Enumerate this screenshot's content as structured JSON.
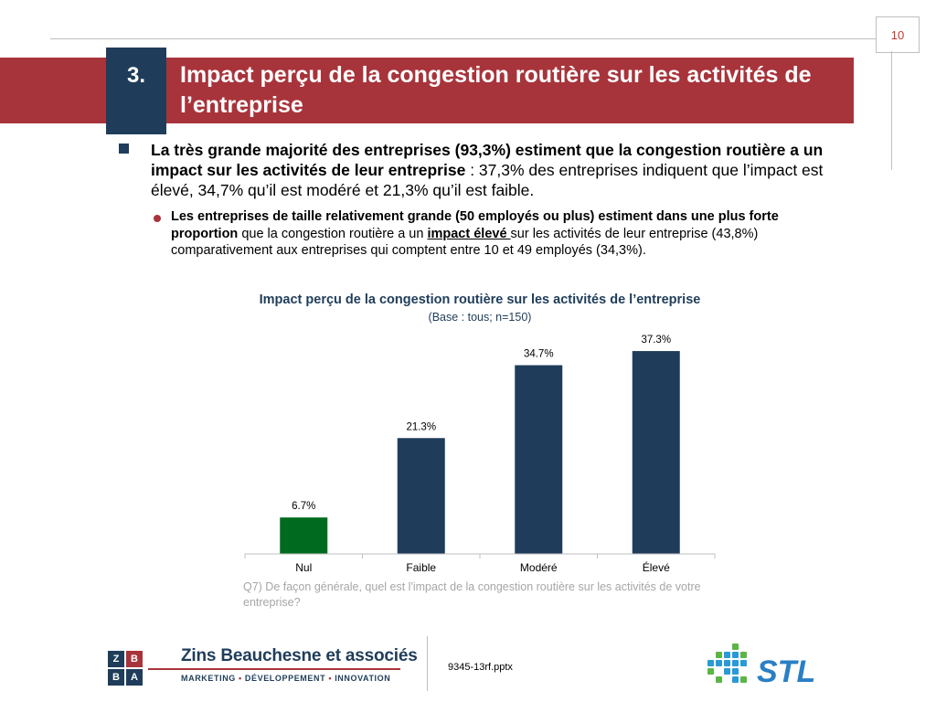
{
  "page_number": "10",
  "section_number": "3.",
  "title": "Impact perçu de la congestion routière sur les activités de l’entreprise",
  "bullet1": {
    "bold": "La très grande majorité des entreprises (93,3%) estiment que la congestion routière a un impact sur les activités de leur entreprise",
    "rest": " : 37,3% des entreprises indiquent que l’impact est élevé, 34,7% qu’il est modéré et 21,3% qu’il est faible."
  },
  "bullet2": {
    "bold": "Les entreprises de taille relativement grande (50 employés ou plus) estiment dans une plus forte proportion",
    "part2": " que la congestion routière a un ",
    "underlined": "impact élevé ",
    "part3": "sur les activités de leur entreprise (43,8%) comparativement aux entreprises qui comptent entre 10 et 49 employés (34,3%)."
  },
  "chart_data": {
    "type": "bar",
    "title": "Impact perçu de la congestion routière sur les activités de l’entreprise",
    "subtitle": "(Base : tous;  n=150)",
    "categories": [
      "Nul",
      "Faible",
      "Modéré",
      "Élevé"
    ],
    "values": [
      6.7,
      21.3,
      34.7,
      37.3
    ],
    "value_labels": [
      "6.7%",
      "21.3%",
      "34.7%",
      "37.3%"
    ],
    "colors": [
      "#006b1e",
      "#1f3d5a",
      "#1f3d5a",
      "#1f3d5a"
    ],
    "ylim": [
      0,
      40
    ],
    "grid": false,
    "xlabel": "",
    "ylabel": ""
  },
  "question": "Q7) De façon générale, quel est l'impact de la congestion routière sur les activités de votre entreprise?",
  "footer": {
    "logo_letters": [
      "Z",
      "B",
      "B",
      "A"
    ],
    "company": "Zins Beauchesne et associés",
    "tagline": [
      "MARKETING",
      "DÉVELOPPEMENT",
      "INNOVATION"
    ],
    "filename": "9345-13rf.pptx",
    "stl_logo": "STL"
  },
  "colors": {
    "brand_red": "#a8343b",
    "brand_navy": "#1f3d5a",
    "green": "#006b1e"
  }
}
